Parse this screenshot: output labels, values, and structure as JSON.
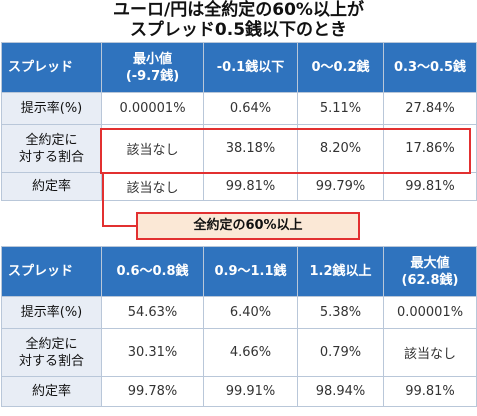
{
  "title": {
    "line1": "ユーロ/円は全約定の60%以上が",
    "line2": "スプレッド0.5銭以下のとき"
  },
  "table1": {
    "corner": "スプレッド",
    "headers": [
      {
        "line1": "最小値",
        "line2": "(-9.7銭)"
      },
      {
        "line1": "-0.1銭以下",
        "line2": ""
      },
      {
        "line1": "0〜0.2銭",
        "line2": ""
      },
      {
        "line1": "0.3〜0.5銭",
        "line2": ""
      }
    ],
    "rows": [
      {
        "label1": "提示率(%)",
        "label2": "",
        "values": [
          "0.00001%",
          "0.64%",
          "5.11%",
          "27.84%"
        ]
      },
      {
        "label1": "全約定に",
        "label2": "対する割合",
        "values": [
          "該当なし",
          "38.18%",
          "8.20%",
          "17.86%"
        ]
      },
      {
        "label1": "約定率",
        "label2": "",
        "values": [
          "該当なし",
          "99.81%",
          "99.79%",
          "99.81%"
        ]
      }
    ]
  },
  "callout": "全約定の60%以上",
  "table2": {
    "corner": "スプレッド",
    "headers": [
      {
        "line1": "0.6〜0.8銭",
        "line2": ""
      },
      {
        "line1": "0.9〜1.1銭",
        "line2": ""
      },
      {
        "line1": "1.2銭以上",
        "line2": ""
      },
      {
        "line1": "最大値",
        "line2": "(62.8銭)"
      }
    ],
    "rows": [
      {
        "label1": "提示率(%)",
        "label2": "",
        "values": [
          "54.63%",
          "6.40%",
          "5.38%",
          "0.00001%"
        ]
      },
      {
        "label1": "全約定に",
        "label2": "対する割合",
        "values": [
          "30.31%",
          "4.66%",
          "0.79%",
          "該当なし"
        ]
      },
      {
        "label1": "約定率",
        "label2": "",
        "values": [
          "99.78%",
          "99.91%",
          "98.94%",
          "99.81%"
        ]
      }
    ]
  }
}
